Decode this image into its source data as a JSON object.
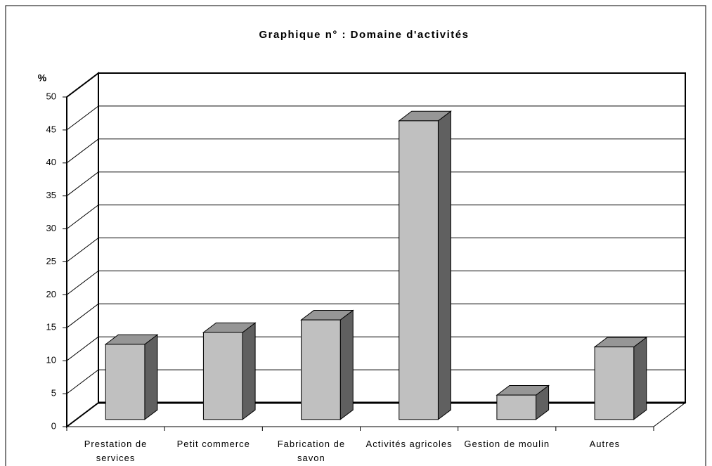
{
  "chart_data": {
    "type": "bar3d",
    "title": "Graphique n° : Domaine d'activités",
    "y_label": "%",
    "categories": [
      "Prestation de services",
      "Petit commerce",
      "Fabrication de savon",
      "Activités agricoles",
      "Gestion de moulin",
      "Autres"
    ],
    "values": [
      11.4,
      13.2,
      15.1,
      45.3,
      3.7,
      11.0
    ],
    "color": "#c0c0c0",
    "ylim": [
      0,
      50
    ],
    "yticks": [
      0,
      5,
      10,
      15,
      20,
      25,
      30,
      35,
      40,
      45,
      50
    ],
    "grid": true
  }
}
